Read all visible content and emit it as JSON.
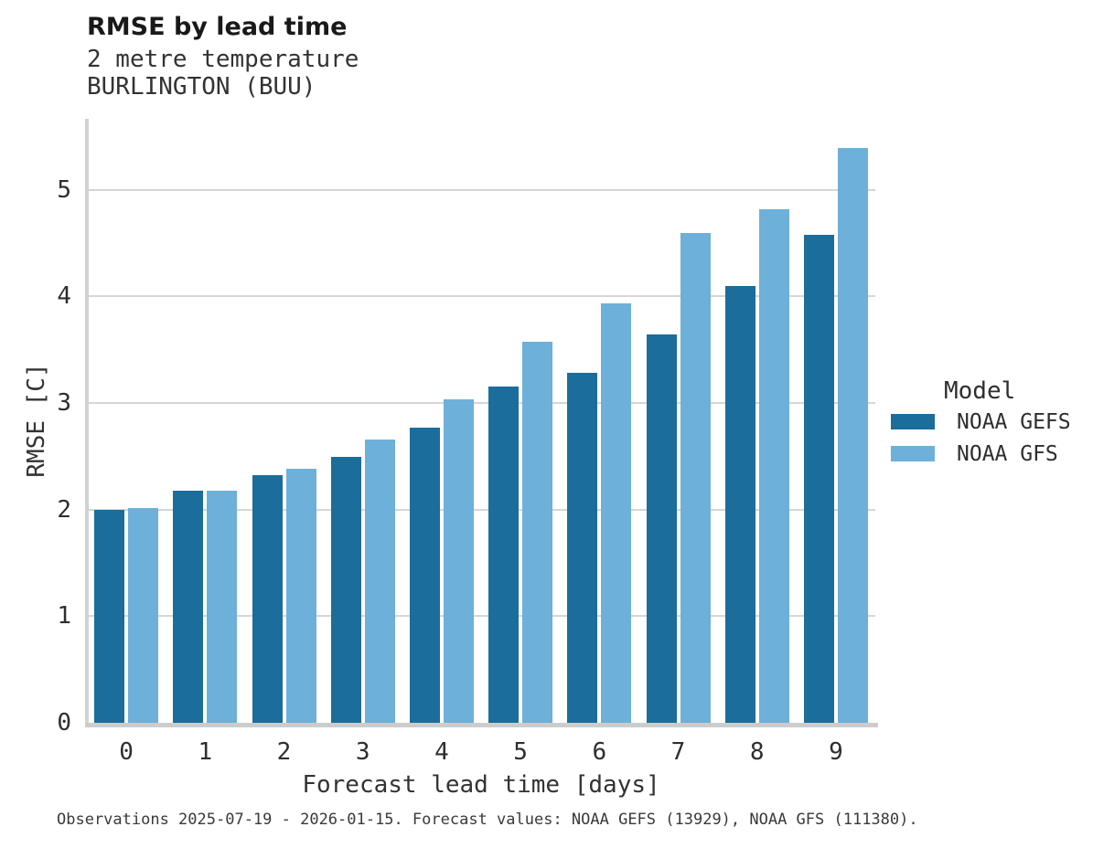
{
  "chart_data": {
    "type": "bar",
    "title": "RMSE by lead time",
    "subtitle": "2 metre temperature",
    "station": "BURLINGTON (BUU)",
    "categories": [
      "0",
      "1",
      "2",
      "3",
      "4",
      "5",
      "6",
      "7",
      "8",
      "9"
    ],
    "series": [
      {
        "name": "NOAA GEFS",
        "color": "#1B6D9B",
        "values": [
          2.0,
          2.18,
          2.32,
          2.49,
          2.77,
          3.15,
          3.28,
          3.64,
          4.1,
          4.58
        ]
      },
      {
        "name": "NOAA GFS",
        "color": "#6DB0D9",
        "values": [
          2.01,
          2.18,
          2.38,
          2.66,
          3.03,
          3.57,
          3.93,
          4.59,
          4.82,
          5.39
        ]
      }
    ],
    "xlabel": "Forecast lead time [days]",
    "ylabel": "RMSE [C]",
    "ylim": [
      0,
      5.69
    ],
    "yticks": [
      0,
      1,
      2,
      3,
      4,
      5
    ],
    "grid": "horizontal",
    "legend": {
      "title": "Model",
      "position": "right"
    }
  },
  "caption": "Observations 2025-07-19 - 2026-01-15. Forecast values: NOAA GEFS (13929), NOAA GFS (111380)."
}
